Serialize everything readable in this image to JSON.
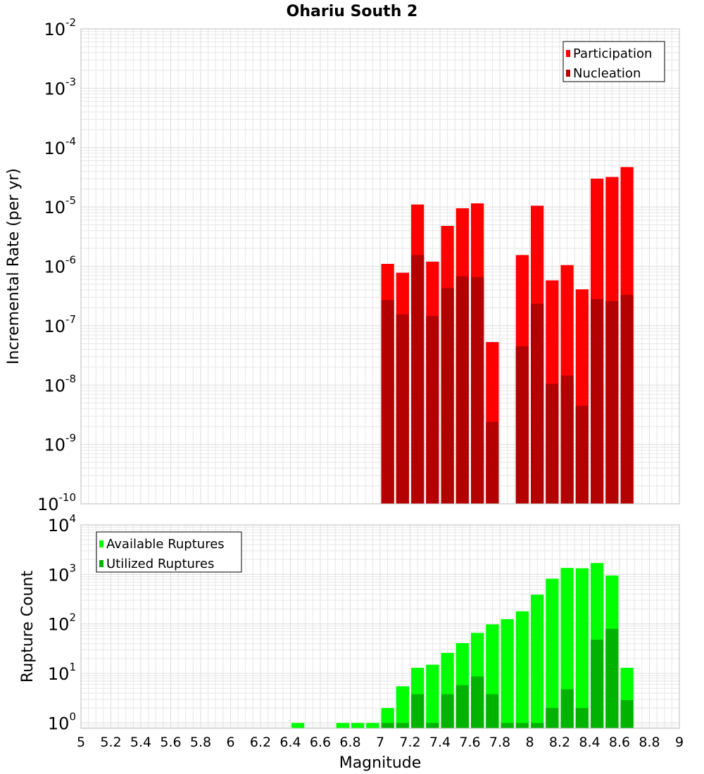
{
  "chart_data": [
    {
      "type": "bar",
      "title": "Ohariu South 2",
      "ylabel": "Incremental Rate (per yr)",
      "y_scale": "log",
      "ylim": [
        1e-10,
        0.01
      ],
      "xlim": [
        5,
        9
      ],
      "legend": {
        "placement": "top-right"
      },
      "grid": true,
      "y_ticks": [
        {
          "base": "10",
          "exp": "-10"
        },
        {
          "base": "10",
          "exp": "-9"
        },
        {
          "base": "10",
          "exp": "-8"
        },
        {
          "base": "10",
          "exp": "-7"
        },
        {
          "base": "10",
          "exp": "-6"
        },
        {
          "base": "10",
          "exp": "-5"
        },
        {
          "base": "10",
          "exp": "-4"
        },
        {
          "base": "10",
          "exp": "-3"
        },
        {
          "base": "10",
          "exp": "-2"
        }
      ],
      "series": [
        {
          "name": "Participation",
          "color": "#ff0000",
          "x": [
            7.05,
            7.15,
            7.25,
            7.35,
            7.45,
            7.55,
            7.65,
            7.75,
            7.95,
            8.05,
            8.15,
            8.25,
            8.35,
            8.45,
            8.55,
            8.65
          ],
          "values": [
            1.1e-06,
            7.8e-07,
            1.1e-05,
            1.2e-06,
            4.8e-06,
            9.5e-06,
            1.15e-05,
            5.3e-08,
            1.55e-06,
            1.05e-05,
            5.8e-07,
            1.05e-06,
            4.1e-07,
            3e-05,
            3.2e-05,
            4.7e-05
          ]
        },
        {
          "name": "Nucleation",
          "color": "#b30000",
          "x": [
            7.05,
            7.15,
            7.25,
            7.35,
            7.45,
            7.55,
            7.65,
            7.75,
            7.95,
            8.05,
            8.15,
            8.25,
            8.35,
            8.45,
            8.55,
            8.65
          ],
          "values": [
            2.7e-07,
            1.55e-07,
            1.55e-06,
            1.45e-07,
            4.3e-07,
            6.8e-07,
            6.6e-07,
            2.4e-09,
            4.5e-08,
            2.35e-07,
            1.05e-08,
            1.45e-08,
            4.5e-09,
            2.8e-07,
            2.6e-07,
            3.3e-07
          ]
        }
      ]
    },
    {
      "type": "bar",
      "xlabel": "Magnitude",
      "ylabel": "Rupture Count",
      "y_scale": "log",
      "ylim": [
        0.78,
        10000
      ],
      "xlim": [
        5,
        9
      ],
      "legend": {
        "placement": "top-left"
      },
      "grid": true,
      "x_ticks": [
        "5",
        "5.2",
        "5.4",
        "5.6",
        "5.8",
        "6",
        "6.2",
        "6.4",
        "6.6",
        "6.8",
        "7",
        "7.2",
        "7.4",
        "7.6",
        "7.8",
        "8",
        "8.2",
        "8.4",
        "8.6",
        "8.8",
        "9"
      ],
      "y_ticks": [
        {
          "base": "10",
          "exp": "0"
        },
        {
          "base": "10",
          "exp": "1"
        },
        {
          "base": "10",
          "exp": "2"
        },
        {
          "base": "10",
          "exp": "3"
        },
        {
          "base": "10",
          "exp": "4"
        }
      ],
      "series": [
        {
          "name": "Available Ruptures",
          "color": "#00ff00",
          "x": [
            6.45,
            6.75,
            6.85,
            6.95,
            7.05,
            7.15,
            7.25,
            7.35,
            7.45,
            7.55,
            7.65,
            7.75,
            7.85,
            7.95,
            8.05,
            8.15,
            8.25,
            8.35,
            8.45,
            8.55,
            8.65
          ],
          "values": [
            1,
            1,
            1,
            1,
            2,
            5.5,
            13,
            15,
            26,
            41,
            66,
            98,
            125,
            180,
            390,
            820,
            1350,
            1330,
            1700,
            950,
            13
          ]
        },
        {
          "name": "Utilized Ruptures",
          "color": "#00b300",
          "x": [
            7.05,
            7.15,
            7.25,
            7.35,
            7.45,
            7.55,
            7.65,
            7.75,
            7.85,
            7.95,
            8.05,
            8.15,
            8.25,
            8.35,
            8.45,
            8.55,
            8.65
          ],
          "values": [
            1,
            1,
            3.8,
            1,
            3.8,
            5.8,
            8.7,
            3.8,
            1,
            1,
            1,
            2,
            4.8,
            2,
            48,
            80,
            2.9
          ]
        }
      ]
    }
  ]
}
